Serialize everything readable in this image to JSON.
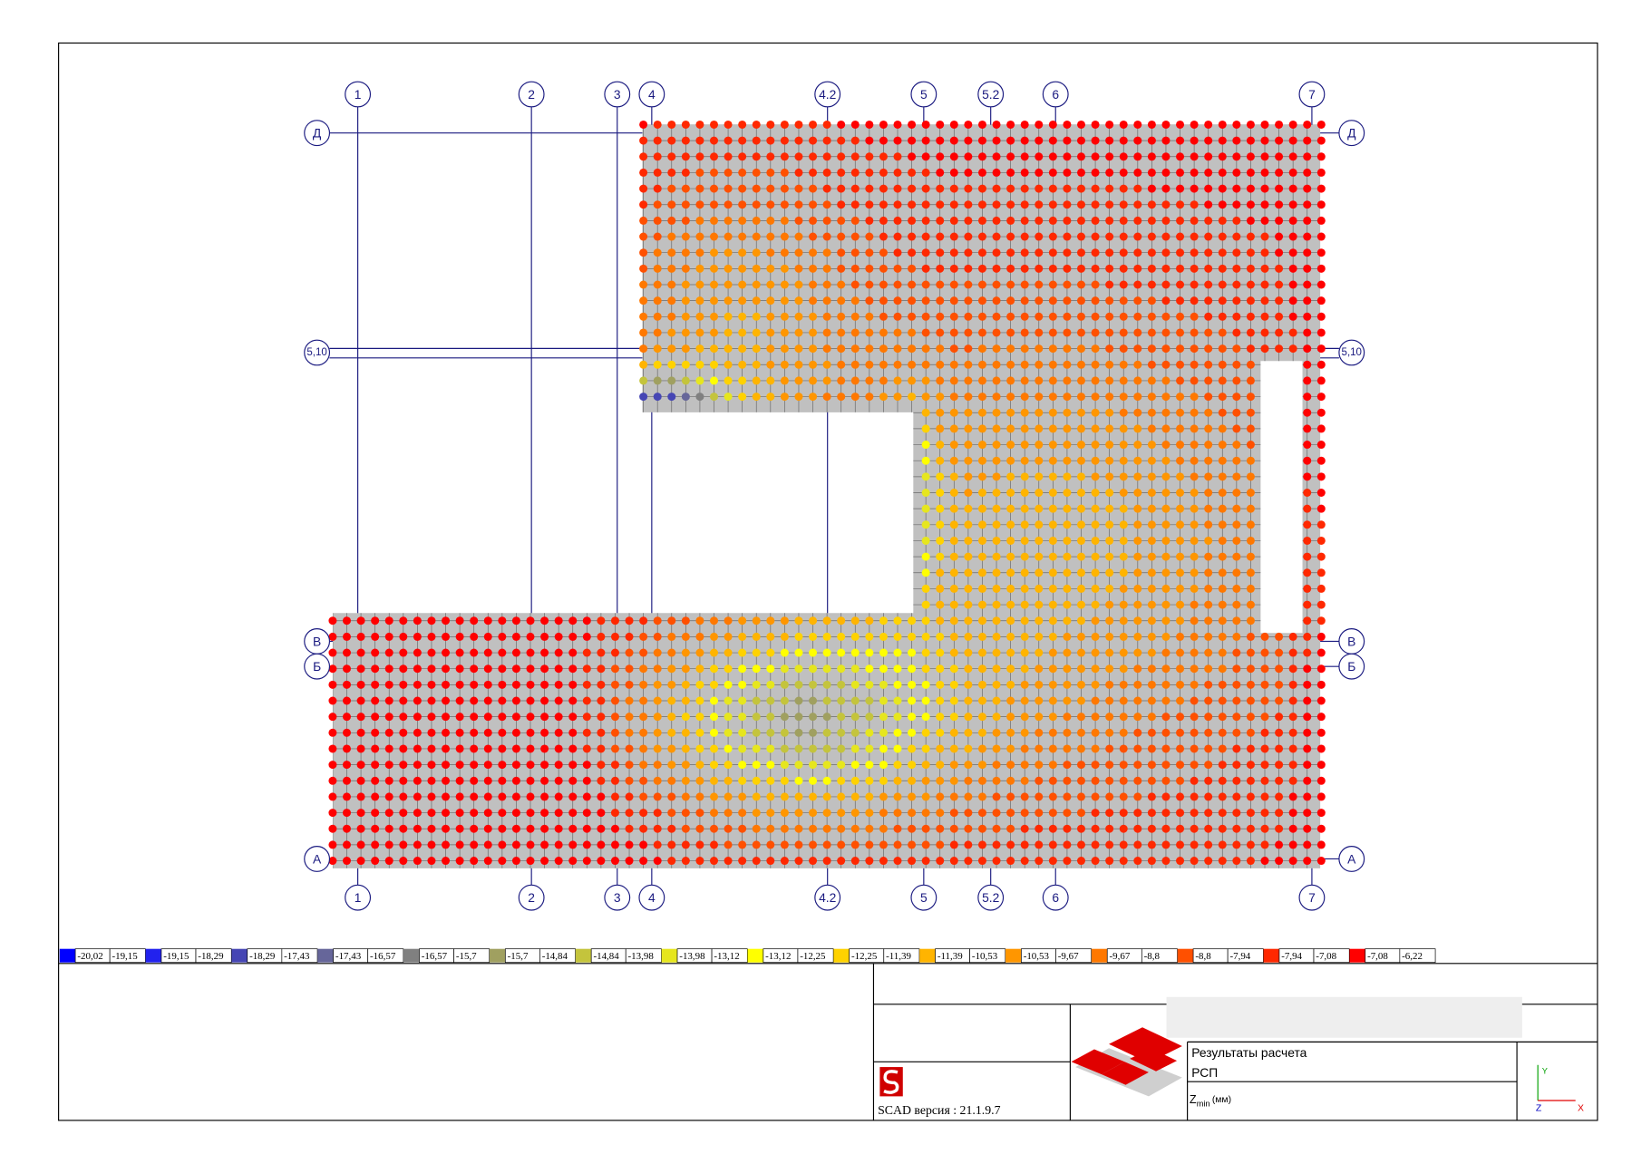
{
  "axes": {
    "columns": [
      "1",
      "2",
      "3",
      "4",
      "4.2",
      "5",
      "5.2",
      "6",
      "7"
    ],
    "rows": [
      "Д",
      "5,10",
      "В",
      "Б",
      "А"
    ]
  },
  "legend": [
    {
      "from": "-20,02",
      "to": "-19,15",
      "color": "#0000ff"
    },
    {
      "from": "-19,15",
      "to": "-18,29",
      "color": "#2222ee"
    },
    {
      "from": "-18,29",
      "to": "-17,43",
      "color": "#4646b4"
    },
    {
      "from": "-17,43",
      "to": "-16,57",
      "color": "#66669a"
    },
    {
      "from": "-16,57",
      "to": "-15,7",
      "color": "#808080"
    },
    {
      "from": "-15,7",
      "to": "-14,84",
      "color": "#a0a060"
    },
    {
      "from": "-14,84",
      "to": "-13,98",
      "color": "#c4c43c"
    },
    {
      "from": "-13,98",
      "to": "-13,12",
      "color": "#e6e61e"
    },
    {
      "from": "-13,12",
      "to": "-12,25",
      "color": "#ffff00"
    },
    {
      "from": "-12,25",
      "to": "-11,39",
      "color": "#ffd200"
    },
    {
      "from": "-11,39",
      "to": "-10,53",
      "color": "#ffb400"
    },
    {
      "from": "-10,53",
      "to": "-9,67",
      "color": "#ff9600"
    },
    {
      "from": "-9,67",
      "to": "-8,8",
      "color": "#ff7800"
    },
    {
      "from": "-8,8",
      "to": "-7,94",
      "color": "#ff5000"
    },
    {
      "from": "-7,94",
      "to": "-7,08",
      "color": "#ff2800"
    },
    {
      "from": "-7,08",
      "to": "-6,22",
      "color": "#ff0000"
    }
  ],
  "title_block": {
    "software": "SCAD версия : 21.1.9.7",
    "title": "Результаты расчета",
    "subtitle": "РСП",
    "quantity": {
      "symbol": "Z",
      "subscript": "min",
      "unit": "(мм)"
    }
  },
  "axis_icon": {
    "y": "Y",
    "z": "Z",
    "x": "X"
  }
}
